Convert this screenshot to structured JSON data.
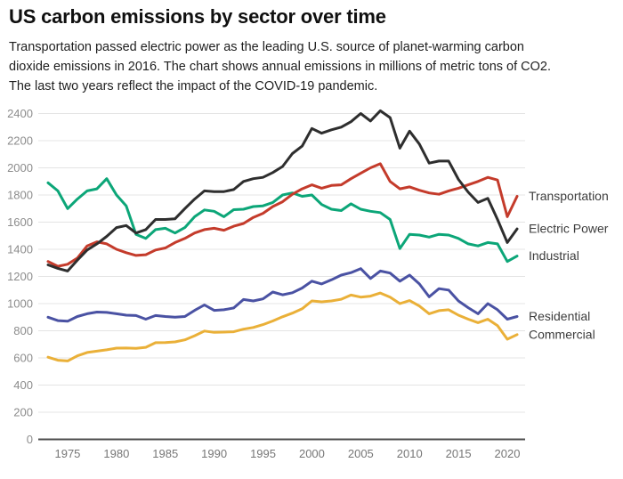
{
  "header": {
    "title": "US carbon emissions by sector over time",
    "subtitle_lines": [
      "Transportation passed electric power as the leading U.S. source of planet-warming carbon",
      "dioxide emissions in 2016. The chart shows annual emissions in millions of metric tons of CO2.",
      "The last two years reflect the impact of the COVID-19 pandemic."
    ]
  },
  "palette": {
    "transportation": "#c43b2b",
    "electric_power": "#2e2e2e",
    "industrial": "#0ca678",
    "residential": "#4a52a3",
    "commercial": "#eab038",
    "gridline": "#e4e4e4",
    "zero_axis": "#4d4d4d",
    "tick_label": "#8c8c8c",
    "series_label": "#3d3d3d"
  },
  "chart_data": {
    "type": "line",
    "title": "US carbon emissions by sector over time",
    "xlabel": "",
    "ylabel": "annual emissions, millions of metric tons of CO2",
    "grid": "horizontal",
    "legend_position": "right-end-labels",
    "ylim": [
      0,
      2400
    ],
    "yticks": [
      0,
      200,
      400,
      600,
      800,
      1000,
      1200,
      1400,
      1600,
      1800,
      2000,
      2200,
      2400
    ],
    "xticks": [
      1975,
      1980,
      1985,
      1990,
      1995,
      2000,
      2005,
      2010,
      2015,
      2020
    ],
    "x": [
      1973,
      1974,
      1975,
      1976,
      1977,
      1978,
      1979,
      1980,
      1981,
      1982,
      1983,
      1984,
      1985,
      1986,
      1987,
      1988,
      1989,
      1990,
      1991,
      1992,
      1993,
      1994,
      1995,
      1996,
      1997,
      1998,
      1999,
      2000,
      2001,
      2002,
      2003,
      2004,
      2005,
      2006,
      2007,
      2008,
      2009,
      2010,
      2011,
      2012,
      2013,
      2014,
      2015,
      2016,
      2017,
      2018,
      2019,
      2020,
      2021
    ],
    "series": [
      {
        "name": "Transportation",
        "color": "#c43b2b",
        "values": [
          1310,
          1275,
          1290,
          1335,
          1425,
          1455,
          1440,
          1400,
          1375,
          1355,
          1360,
          1395,
          1410,
          1450,
          1480,
          1520,
          1545,
          1555,
          1540,
          1570,
          1590,
          1635,
          1665,
          1715,
          1750,
          1805,
          1845,
          1875,
          1850,
          1870,
          1875,
          1920,
          1960,
          2000,
          2030,
          1900,
          1845,
          1860,
          1835,
          1815,
          1805,
          1830,
          1850,
          1875,
          1900,
          1930,
          1910,
          1640,
          1790
        ]
      },
      {
        "name": "Electric Power",
        "color": "#2e2e2e",
        "values": [
          1285,
          1260,
          1240,
          1320,
          1395,
          1440,
          1495,
          1560,
          1575,
          1520,
          1545,
          1620,
          1620,
          1625,
          1700,
          1770,
          1830,
          1825,
          1825,
          1840,
          1900,
          1920,
          1930,
          1965,
          2010,
          2105,
          2160,
          2290,
          2255,
          2280,
          2300,
          2340,
          2400,
          2345,
          2420,
          2370,
          2145,
          2270,
          2175,
          2035,
          2050,
          2050,
          1915,
          1820,
          1745,
          1775,
          1620,
          1450,
          1550
        ]
      },
      {
        "name": "Industrial",
        "color": "#0ca678",
        "values": [
          1890,
          1830,
          1700,
          1770,
          1830,
          1845,
          1920,
          1800,
          1720,
          1510,
          1480,
          1545,
          1555,
          1520,
          1560,
          1640,
          1690,
          1680,
          1640,
          1692,
          1695,
          1715,
          1720,
          1745,
          1800,
          1815,
          1790,
          1800,
          1730,
          1695,
          1685,
          1735,
          1695,
          1680,
          1670,
          1620,
          1405,
          1510,
          1505,
          1490,
          1510,
          1505,
          1480,
          1440,
          1425,
          1450,
          1440,
          1310,
          1350
        ]
      },
      {
        "name": "Residential",
        "color": "#4a52a3",
        "values": [
          900,
          875,
          870,
          905,
          925,
          938,
          935,
          925,
          915,
          912,
          885,
          912,
          905,
          900,
          905,
          950,
          990,
          950,
          955,
          968,
          1030,
          1020,
          1035,
          1085,
          1065,
          1080,
          1115,
          1165,
          1145,
          1175,
          1210,
          1228,
          1258,
          1185,
          1240,
          1225,
          1165,
          1210,
          1145,
          1050,
          1110,
          1100,
          1020,
          970,
          925,
          1000,
          955,
          885,
          905
        ]
      },
      {
        "name": "Commercial",
        "color": "#eab038",
        "values": [
          605,
          583,
          578,
          615,
          640,
          650,
          660,
          672,
          673,
          670,
          678,
          712,
          713,
          718,
          733,
          763,
          798,
          788,
          790,
          793,
          812,
          824,
          845,
          872,
          903,
          930,
          962,
          1020,
          1013,
          1020,
          1032,
          1063,
          1048,
          1055,
          1078,
          1048,
          1000,
          1022,
          982,
          925,
          948,
          955,
          915,
          885,
          860,
          885,
          838,
          738,
          772
        ]
      }
    ]
  }
}
